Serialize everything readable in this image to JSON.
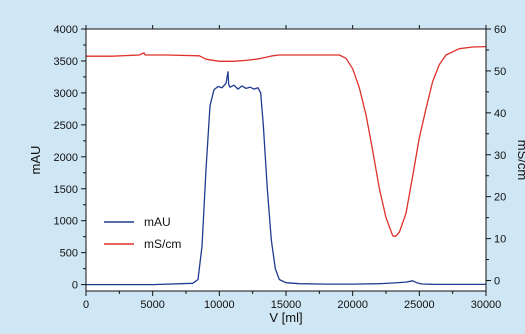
{
  "colors": {
    "background": "#cfe6f4",
    "plot_area": "#ffffff",
    "mAU": "#1f3b8f",
    "mS_cm": "#e0302a"
  },
  "chart_data": {
    "type": "line",
    "xlabel": "V [ml]",
    "ylabel_left": "mAU",
    "ylabel_right": "mS/cm",
    "xlim": [
      0,
      30000
    ],
    "ylim_left": [
      -100,
      4000
    ],
    "ylim_right": [
      -2.5,
      60
    ],
    "x_ticks": [
      0,
      5000,
      10000,
      15000,
      20000,
      25000,
      30000
    ],
    "y_left_ticks": [
      0,
      500,
      1000,
      1500,
      2000,
      2500,
      3000,
      3500,
      4000
    ],
    "y_right_ticks": [
      0,
      10,
      20,
      30,
      40,
      50,
      60
    ],
    "grid": false,
    "legend_position": "lower-left",
    "series": [
      {
        "name": "mAU",
        "axis": "left",
        "color": "#1f3b8f",
        "x": [
          0,
          2000,
          5000,
          8000,
          8400,
          8700,
          9000,
          9300,
          9600,
          9900,
          10200,
          10500,
          10650,
          10700,
          10800,
          11100,
          11400,
          11700,
          12000,
          12300,
          12600,
          12900,
          13100,
          13300,
          13600,
          13900,
          14200,
          14500,
          15000,
          16000,
          18000,
          20000,
          22000,
          23000,
          24000,
          24500,
          24800,
          25200,
          26000,
          28000,
          30000
        ],
        "values": [
          0,
          0,
          0,
          20,
          80,
          600,
          1800,
          2800,
          3050,
          3100,
          3080,
          3150,
          3330,
          3130,
          3090,
          3120,
          3060,
          3110,
          3070,
          3090,
          3060,
          3080,
          3000,
          2500,
          1500,
          700,
          250,
          80,
          30,
          15,
          8,
          8,
          15,
          25,
          40,
          60,
          30,
          10,
          5,
          3,
          3
        ]
      },
      {
        "name": "mS/cm",
        "axis": "right",
        "color": "#e0302a",
        "x": [
          0,
          2000,
          4000,
          4350,
          4450,
          6000,
          8500,
          9000,
          10000,
          11000,
          12000,
          13000,
          14000,
          14500,
          16000,
          18000,
          19000,
          19500,
          20000,
          20500,
          21000,
          21500,
          22000,
          22500,
          23000,
          23200,
          23500,
          24000,
          24500,
          25000,
          25500,
          26000,
          26500,
          27000,
          28000,
          29000,
          30000
        ],
        "values": [
          53.5,
          53.5,
          53.8,
          54.3,
          53.8,
          53.8,
          53.6,
          52.8,
          52.3,
          52.3,
          52.5,
          52.9,
          53.6,
          53.8,
          53.8,
          53.8,
          53.8,
          53.0,
          50.5,
          46.0,
          39.5,
          31.0,
          22.0,
          15.0,
          10.7,
          10.5,
          11.5,
          16.0,
          25.0,
          34.0,
          41.0,
          47.5,
          51.5,
          53.8,
          55.3,
          55.7,
          55.8
        ]
      }
    ]
  }
}
